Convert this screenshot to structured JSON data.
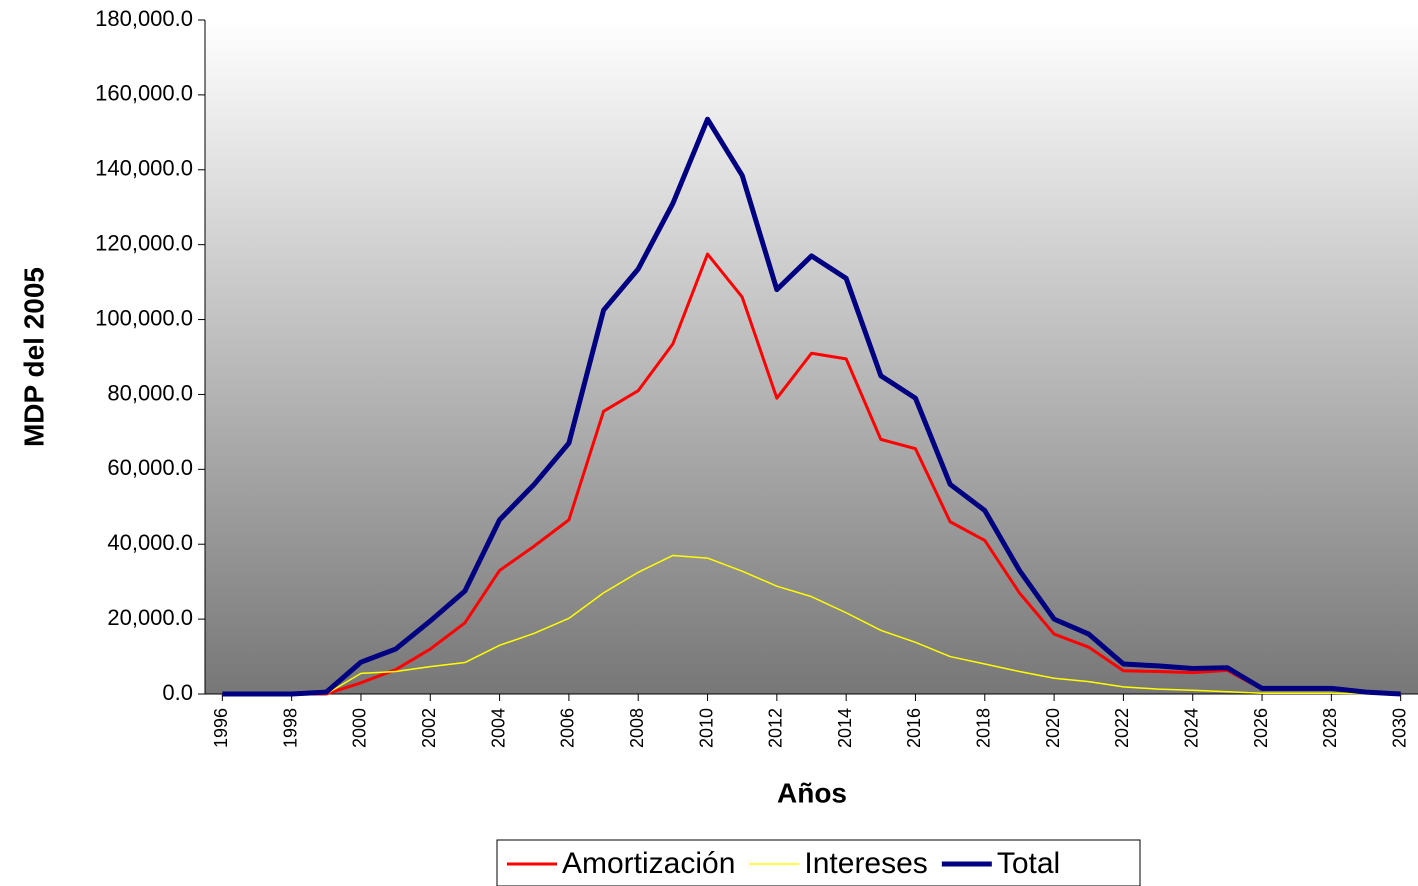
{
  "chart_data": {
    "type": "line",
    "x_label": "Años",
    "y_label": "MDP del 2005",
    "x": [
      1996,
      1997,
      1998,
      1999,
      2000,
      2001,
      2002,
      2003,
      2004,
      2005,
      2006,
      2007,
      2008,
      2009,
      2010,
      2011,
      2012,
      2013,
      2014,
      2015,
      2016,
      2017,
      2018,
      2019,
      2020,
      2021,
      2022,
      2023,
      2024,
      2025,
      2026,
      2027,
      2028,
      2029,
      2030
    ],
    "series": [
      {
        "name": "Amortización",
        "color": "#ff0000",
        "values": [
          0,
          0,
          0,
          0,
          3000,
          6500,
          12000,
          19000,
          33000,
          39500,
          46500,
          75500,
          81000,
          93500,
          117500,
          106000,
          79000,
          91000,
          89500,
          68000,
          65500,
          46000,
          41000,
          27000,
          16000,
          12500,
          6200,
          6000,
          5700,
          6300,
          1300,
          1300,
          1300,
          400,
          0
        ]
      },
      {
        "name": "Intereses",
        "color": "#ffff00",
        "values": [
          0,
          0,
          0,
          0,
          5500,
          6000,
          7300,
          8400,
          13000,
          16200,
          20200,
          27000,
          32500,
          37000,
          36300,
          32800,
          28800,
          26000,
          21700,
          17000,
          13800,
          10000,
          8000,
          6000,
          4200,
          3300,
          1900,
          1300,
          1000,
          600,
          200,
          200,
          200,
          100,
          0
        ]
      },
      {
        "name": "Total",
        "color": "#000080",
        "values": [
          0,
          0,
          0,
          500,
          8500,
          12000,
          19500,
          27500,
          46500,
          56000,
          67000,
          102500,
          113500,
          131000,
          153500,
          138500,
          108000,
          117000,
          111000,
          85000,
          79000,
          56000,
          49000,
          33000,
          20000,
          16000,
          8000,
          7500,
          6800,
          7000,
          1500,
          1500,
          1500,
          500,
          0
        ]
      }
    ],
    "xlim": [
      1995.5,
      2030.5
    ],
    "xticks": [
      1996,
      1998,
      2000,
      2002,
      2004,
      2006,
      2008,
      2010,
      2012,
      2014,
      2016,
      2018,
      2020,
      2022,
      2024,
      2026,
      2028,
      2030
    ],
    "ylim": [
      0,
      180000
    ],
    "yticks": [
      {
        "value": 0,
        "label": "0.0"
      },
      {
        "value": 20000,
        "label": "20,000.0"
      },
      {
        "value": 40000,
        "label": "40,000.0"
      },
      {
        "value": 60000,
        "label": "60,000.0"
      },
      {
        "value": 80000,
        "label": "80,000.0"
      },
      {
        "value": 100000,
        "label": "100,000.0"
      },
      {
        "value": 120000,
        "label": "120,000.0"
      },
      {
        "value": 140000,
        "label": "140,000.0"
      },
      {
        "value": 160000,
        "label": "160,000.0"
      },
      {
        "value": 180000,
        "label": "180,000.0"
      }
    ],
    "legend": "bottom"
  }
}
